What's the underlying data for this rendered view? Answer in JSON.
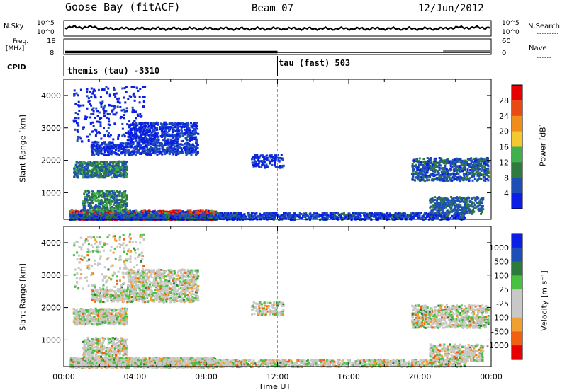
{
  "header": {
    "station": "Goose Bay (fitACF)",
    "beam": "Beam 07",
    "date": "12/Jun/2012"
  },
  "noise_panel": {
    "left_label": "N.Sky",
    "right_label": "N.Search",
    "left_ticks": [
      "10^5",
      "10^0"
    ],
    "right_ticks": [
      "10^5",
      "10^0"
    ]
  },
  "freq_panel": {
    "left_label_line1": "Freq.",
    "left_label_line2": "[MHz]",
    "right_label": "Nave",
    "left_ticks": [
      "18",
      "8"
    ],
    "right_ticks": [
      "60",
      "0"
    ]
  },
  "cpid": {
    "label": "CPID",
    "segments": [
      "themis (tau) -3310",
      "tau (fast) 503"
    ]
  },
  "colors": {
    "power": [
      "#0a1ee6",
      "#1e4fb4",
      "#2f7a3c",
      "#3fb04c",
      "#f4c830",
      "#f08c1c",
      "#e84a14",
      "#e60000"
    ],
    "velocity": [
      "#e60000",
      "#f06010",
      "#f0a030",
      "#c8c8c8",
      "#c8c8c8",
      "#48c040",
      "#2e7a3c",
      "#1e4fb4",
      "#0a1ee6"
    ]
  },
  "chart_data": [
    {
      "type": "heatmap",
      "title": "",
      "ylabel": "Slant Range [km]",
      "xlabel": "",
      "xlim": [
        0,
        24
      ],
      "ylim": [
        180,
        4500
      ],
      "yticks": [
        1000,
        2000,
        3000,
        4000
      ],
      "colorbar": {
        "label": "Power [dB]",
        "ticks": [
          "28",
          "24",
          "20",
          "16",
          "12",
          "8",
          "4"
        ],
        "tick_values": [
          28,
          24,
          20,
          16,
          12,
          8,
          4
        ],
        "range": [
          0,
          32
        ]
      }
    },
    {
      "type": "heatmap",
      "title": "",
      "ylabel": "Slant Range [km]",
      "xlabel": "Time UT",
      "xlim": [
        0,
        24
      ],
      "ylim": [
        180,
        4500
      ],
      "yticks": [
        1000,
        2000,
        3000,
        4000
      ],
      "xticks": [
        "00:00",
        "04:00",
        "08:00",
        "12:00",
        "16:00",
        "20:00",
        "00:00"
      ],
      "colorbar": {
        "label": "Velocity [m s⁻¹]",
        "ticks": [
          "1000",
          "500",
          "100",
          "25",
          "-25",
          "-100",
          "-500",
          "-1000"
        ]
      }
    }
  ]
}
